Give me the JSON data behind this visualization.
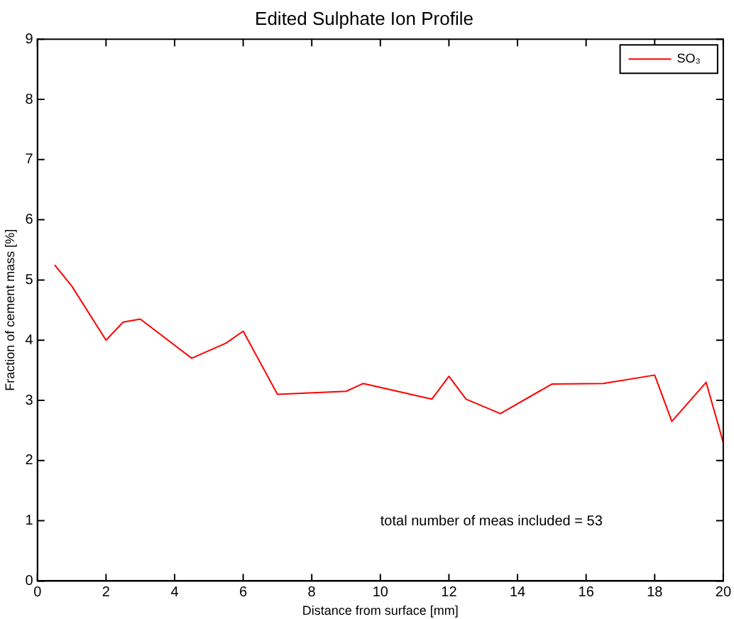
{
  "chart_data": {
    "type": "line",
    "title": "Edited Sulphate Ion Profile",
    "xlabel": "Distance from surface [mm]",
    "ylabel": "Fraction of cement mass [%]",
    "x": [
      0.5,
      1,
      2,
      2.5,
      3,
      4.5,
      5.5,
      6,
      7,
      9,
      9.5,
      11.5,
      12,
      12.5,
      13.5,
      15,
      16.5,
      18,
      18.5,
      19.5,
      20
    ],
    "series": [
      {
        "name": "SO₃",
        "color": "#ff0000",
        "values": [
          5.25,
          4.9,
          4.0,
          4.3,
          4.35,
          3.7,
          3.95,
          4.15,
          3.1,
          3.15,
          3.28,
          3.02,
          3.4,
          3.02,
          2.78,
          3.27,
          3.28,
          3.42,
          2.65,
          3.3,
          2.3
        ]
      }
    ],
    "xlim": [
      0,
      20
    ],
    "xticks": [
      0,
      2,
      4,
      6,
      8,
      10,
      12,
      14,
      16,
      18,
      20
    ],
    "ylim": [
      0,
      9
    ],
    "yticks": [
      0,
      1,
      2,
      3,
      4,
      5,
      6,
      7,
      8,
      9
    ],
    "grid": false,
    "legend": "top right",
    "marker": "none",
    "line_style": "solid",
    "annotations": [
      "total number of meas included = 53"
    ]
  }
}
